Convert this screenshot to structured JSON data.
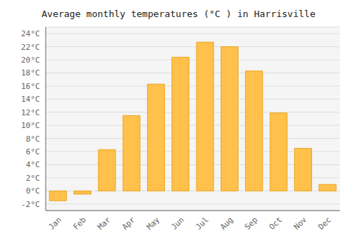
{
  "chart_data": {
    "type": "bar",
    "title": "Average monthly temperatures (°C ) in Harrisville",
    "categories": [
      "Jan",
      "Feb",
      "Mar",
      "Apr",
      "May",
      "Jun",
      "Jul",
      "Aug",
      "Sep",
      "Oct",
      "Nov",
      "Dec"
    ],
    "values": [
      -1.5,
      -0.5,
      6.3,
      11.5,
      16.3,
      20.4,
      22.7,
      22.0,
      18.3,
      11.9,
      6.5,
      1.0
    ],
    "color": "#FFC04C",
    "ylim": [
      -3,
      25
    ],
    "yticks": [
      {
        "value": -2,
        "label": "-2°C"
      },
      {
        "value": 0,
        "label": "0°C"
      },
      {
        "value": 2,
        "label": "2°C"
      },
      {
        "value": 4,
        "label": "4°C"
      },
      {
        "value": 6,
        "label": "6°C"
      },
      {
        "value": 8,
        "label": "8°C"
      },
      {
        "value": 10,
        "label": "10°C"
      },
      {
        "value": 12,
        "label": "12°C"
      },
      {
        "value": 14,
        "label": "14°C"
      },
      {
        "value": 16,
        "label": "16°C"
      },
      {
        "value": 18,
        "label": "18°C"
      },
      {
        "value": 20,
        "label": "20°C"
      },
      {
        "value": 22,
        "label": "22°C"
      },
      {
        "value": 24,
        "label": "24°C"
      }
    ],
    "grid": true
  }
}
